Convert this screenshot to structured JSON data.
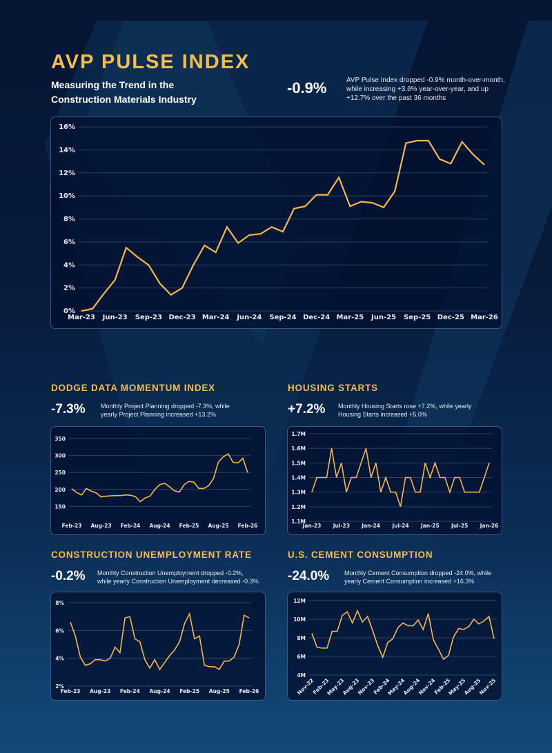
{
  "header": {
    "title": "AVP PULSE INDEX",
    "subtitle_line1": "Measuring the Trend in the",
    "subtitle_line2": "Construction Materials Industry",
    "headline_pct": "-0.9%",
    "headline_desc": "AVP Pulse Index dropped -0.9% month-over-month, while increasing +3.6% year-over-year, and up +12.7% over the past 36 months"
  },
  "colors": {
    "accent": "#f5bc4f",
    "line": "#f4b94e",
    "grid": "#2a4468",
    "panel_border": "#3c5a80",
    "background_top": "#061634",
    "background_bottom": "#134a78"
  },
  "sections": {
    "dodge": {
      "title": "DODGE DATA MOMENTUM INDEX",
      "pct": "-7.3%",
      "desc_line1": "Monthly Project Planning dropped -7.3%, while",
      "desc_line2": "yearly Project Planning increased +13.2%"
    },
    "housing": {
      "title": "HOUSING STARTS",
      "pct": "+7.2%",
      "desc_line1": "Monthly Housing Starts rose +7.2%, while yearly",
      "desc_line2": "Housing Starts increased +5.0%"
    },
    "unemployment": {
      "title": "CONSTRUCTION UNEMPLOYMENT RATE",
      "pct": "-0.2%",
      "desc_line1": "Monthly Construction Unemployment dropped -0.2%,",
      "desc_line2": "while yearly Construction Unemployment decreased -0.3%"
    },
    "cement": {
      "title": "U.S. CEMENT CONSUMPTION",
      "pct": "-24.0%",
      "desc_line1": "Monthly Cement Consumption dropped -24.0%, while",
      "desc_line2": "yearly Cement Consumption increased +16.3%"
    }
  },
  "chart_data": [
    {
      "id": "pulse",
      "type": "line",
      "title": "AVP Pulse Index",
      "xlabel": "",
      "ylabel": "",
      "ylim": [
        0,
        16
      ],
      "yticks": [
        0,
        2,
        4,
        6,
        8,
        10,
        12,
        14,
        16
      ],
      "ytick_labels": [
        "0%",
        "2%",
        "4%",
        "6%",
        "8%",
        "10%",
        "12%",
        "14%",
        "16%"
      ],
      "x_start": "Mar-23",
      "x_end": "Mar-26",
      "frequency": "monthly",
      "xtick_labels": [
        "Mar-23",
        "Jun-23",
        "Sep-23",
        "Dec-23",
        "Mar-24",
        "Jun-24",
        "Sep-24",
        "Dec-24",
        "Mar-25",
        "Jun-25",
        "Sep-25",
        "Dec-25",
        "Mar-26"
      ],
      "xtick_every": 3,
      "grid": true,
      "values": [
        0,
        0.2,
        1.5,
        2.7,
        5.5,
        4.7,
        4.0,
        2.4,
        1.4,
        2.0,
        4.0,
        5.7,
        5.1,
        7.3,
        5.9,
        6.6,
        6.7,
        7.3,
        6.9,
        8.9,
        9.1,
        10.1,
        10.1,
        11.6,
        9.1,
        9.5,
        9.4,
        9.0,
        10.4,
        14.6,
        14.8,
        14.8,
        13.2,
        12.8,
        14.7,
        13.6,
        12.7
      ]
    },
    {
      "id": "dodge",
      "type": "line",
      "title": "Dodge Data Momentum Index",
      "ylim": [
        100,
        350
      ],
      "yticks": [
        150,
        200,
        250,
        300,
        350
      ],
      "ytick_labels": [
        "150",
        "200",
        "250",
        "300",
        "350"
      ],
      "x_start": "Feb-23",
      "x_end": "Feb-26",
      "frequency": "monthly",
      "xtick_labels": [
        "Feb-23",
        "Aug-23",
        "Feb-24",
        "Aug-24",
        "Feb-25",
        "Aug-25",
        "Feb-26"
      ],
      "xtick_every": 6,
      "grid": true,
      "values": [
        202,
        191,
        184,
        203,
        195,
        190,
        178,
        180,
        181,
        182,
        182,
        184,
        183,
        179,
        164,
        175,
        180,
        200,
        214,
        218,
        208,
        196,
        192,
        214,
        224,
        221,
        203,
        203,
        211,
        232,
        281,
        296,
        305,
        280,
        278,
        292,
        250
      ]
    },
    {
      "id": "housing",
      "type": "line",
      "title": "Housing Starts",
      "ylim": [
        1.1,
        1.7
      ],
      "yticks": [
        1.1,
        1.2,
        1.3,
        1.4,
        1.5,
        1.6,
        1.7
      ],
      "ytick_labels": [
        "1.1M",
        "1.2M",
        "1.3M",
        "1.4M",
        "1.5M",
        "1.6M",
        "1.7M"
      ],
      "x_start": "Jan-23",
      "x_end": "Jan-26",
      "frequency": "monthly",
      "xtick_labels": [
        "Jan-23",
        "Jul-23",
        "Jan-24",
        "Jul-24",
        "Jan-25",
        "Jul-25",
        "Jan-26"
      ],
      "xtick_every": 6,
      "grid": true,
      "values": [
        1.3,
        1.4,
        1.4,
        1.4,
        1.6,
        1.4,
        1.5,
        1.3,
        1.4,
        1.4,
        1.5,
        1.6,
        1.4,
        1.5,
        1.3,
        1.4,
        1.3,
        1.3,
        1.2,
        1.4,
        1.4,
        1.3,
        1.3,
        1.5,
        1.4,
        1.5,
        1.4,
        1.4,
        1.3,
        1.4,
        1.4,
        1.3,
        1.3,
        1.3,
        1.3,
        1.4,
        1.5
      ]
    },
    {
      "id": "unemployment",
      "type": "line",
      "title": "Construction Unemployment Rate",
      "ylim": [
        2,
        8
      ],
      "yticks": [
        2,
        4,
        6,
        8
      ],
      "ytick_labels": [
        "2%",
        "4%",
        "6%",
        "8%"
      ],
      "x_start": "Feb-23",
      "x_end": "Feb-26",
      "frequency": "monthly",
      "xtick_labels": [
        "Feb-23",
        "Aug-23",
        "Feb-24",
        "Aug-24",
        "Feb-25",
        "Aug-25",
        "Feb-26"
      ],
      "xtick_every": 6,
      "grid": true,
      "values": [
        6.6,
        5.6,
        4.1,
        3.5,
        3.6,
        3.9,
        3.9,
        3.8,
        4.0,
        4.8,
        4.4,
        6.9,
        7.0,
        5.4,
        5.2,
        3.9,
        3.3,
        3.9,
        3.2,
        3.7,
        4.2,
        4.6,
        5.2,
        6.5,
        7.2,
        5.4,
        5.6,
        3.5,
        3.4,
        3.4,
        3.2,
        3.8,
        3.8,
        4.1,
        5.0,
        7.1,
        6.9
      ]
    },
    {
      "id": "cement",
      "type": "line",
      "title": "U.S. Cement Consumption",
      "ylim": [
        4,
        12
      ],
      "yticks": [
        4,
        6,
        8,
        10,
        12
      ],
      "ytick_labels": [
        "4M",
        "6M",
        "8M",
        "10M",
        "12M"
      ],
      "x_start": "Nov-22",
      "x_end": "Nov-25",
      "frequency": "monthly",
      "xtick_labels": [
        "Nov-22",
        "Feb-23",
        "May-23",
        "Aug-23",
        "Nov-23",
        "Feb-24",
        "May-24",
        "Aug-24",
        "Nov-24",
        "Feb-25",
        "May-25",
        "Aug-25",
        "Nov-25"
      ],
      "xtick_every": 3,
      "xtick_rotated": true,
      "grid": true,
      "values": [
        8.5,
        7.0,
        6.9,
        6.9,
        8.7,
        8.7,
        10.4,
        10.8,
        9.6,
        10.9,
        9.7,
        10.3,
        8.8,
        7.2,
        5.9,
        7.5,
        7.9,
        9.1,
        9.6,
        9.3,
        9.3,
        9.9,
        8.9,
        10.6,
        7.8,
        6.8,
        5.7,
        6.1,
        8.1,
        9.0,
        8.9,
        9.2,
        10.0,
        9.5,
        9.8,
        10.3,
        7.9
      ]
    }
  ]
}
